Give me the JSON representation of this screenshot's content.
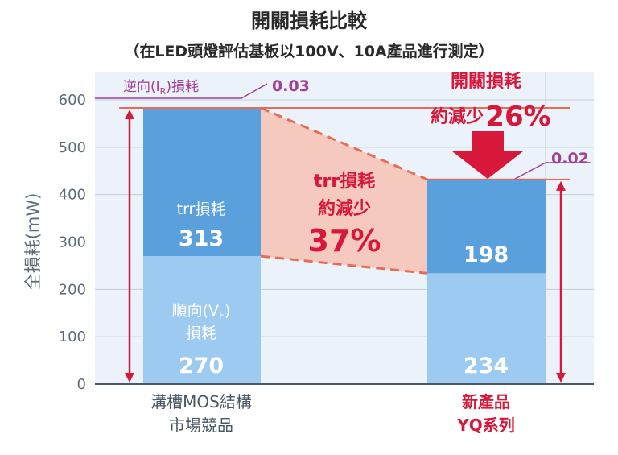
{
  "colors": {
    "plot_bg": "#ebf2fa",
    "trr": "#5aa0dd",
    "vf": "#9ccaf0",
    "trr_gap": "#f6c9be",
    "red": "#d8183a",
    "salmon": "#e36e56",
    "magenta": "#a04096",
    "axis_text": "#5b6b7b",
    "title_text": "#2a2a2a",
    "white": "#ffffff"
  },
  "chart_data": {
    "type": "bar",
    "stacked": true,
    "title": "開關損耗比較",
    "subtitle": "（在LED頭燈評估基板以100V、10A產品進行測定）",
    "ylabel": "全損耗(mW)",
    "xlabel": "",
    "ylim": [
      0,
      650
    ],
    "yticks": [
      0,
      100,
      200,
      300,
      400,
      500,
      600
    ],
    "grid": true,
    "categories": [
      {
        "line1": "溝槽MOS結構",
        "line2": "市場競品"
      },
      {
        "line1": "新產品",
        "line2": "YQ系列"
      }
    ],
    "series": [
      {
        "name_line1": "順向(V",
        "name_sub": "F",
        "name_close": ")",
        "name_line2": "損耗",
        "values": [
          270,
          234
        ]
      },
      {
        "name": "trr損耗",
        "values": [
          313,
          198
        ]
      },
      {
        "name_prefix": "逆向(I",
        "name_sub": "R",
        "name_close": ")",
        "name_suffix": "損耗",
        "values": [
          0.03,
          0.02
        ]
      }
    ],
    "annotations": {
      "ir_left_value": "0.03",
      "ir_right_value": "0.02",
      "trr_reduction_line1": "trr損耗",
      "trr_reduction_line2": "約減少",
      "trr_reduction_pct": "37%",
      "total_reduction_line1": "開關損耗",
      "total_reduction_line2": "約減少",
      "total_reduction_pct": "26%"
    }
  }
}
